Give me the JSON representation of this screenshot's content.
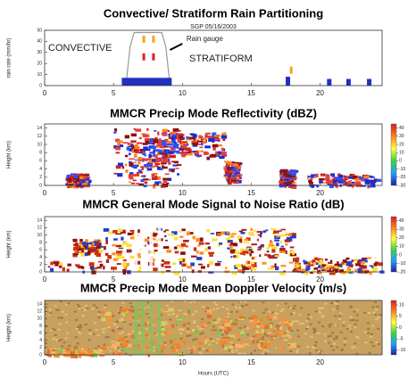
{
  "chart_data": [
    {
      "type": "line",
      "title": "Convective/ Stratiform Rain Partitioning",
      "subtitle": "SGP 05/16/2003",
      "ylabel": "rain rate (mm/hr)",
      "annotations": [
        {
          "text": "CONVECTIVE",
          "color": "#ff8c1a"
        },
        {
          "text": "Rain gauge",
          "color": "#000000"
        },
        {
          "text": "STRATIFORM",
          "color": "#2030c0"
        }
      ],
      "xlim": [
        0,
        24.5
      ],
      "xticks": [
        0,
        5,
        10,
        15,
        20
      ],
      "ylim": [
        0,
        50
      ],
      "yticks": [
        0,
        10,
        20,
        30,
        40,
        50
      ],
      "series": [
        {
          "type": "line",
          "color": "#999999",
          "x": [
            5.9,
            6.2,
            6.5,
            8.5,
            8.8,
            9.1
          ],
          "values": [
            0,
            35,
            48,
            48,
            35,
            0
          ]
        },
        {
          "type": "bar",
          "color": "#2030c0",
          "x": [
            5.6,
            5.9,
            6.2,
            6.5,
            6.8,
            7.1,
            7.4,
            7.7,
            8.0,
            8.3,
            8.6,
            8.9,
            17.5,
            20.5,
            21.9,
            23.4
          ],
          "values": [
            7,
            7,
            7,
            7,
            7,
            7,
            7,
            7,
            7,
            7,
            7,
            7,
            8,
            6,
            6,
            6
          ]
        },
        {
          "type": "marker",
          "color": "#ffa020",
          "x": [
            7.2,
            7.9,
            17.9
          ],
          "values": [
            42,
            42,
            14
          ]
        },
        {
          "type": "marker",
          "color": "#e02020",
          "x": [
            7.2,
            7.9
          ],
          "values": [
            26,
            26
          ]
        }
      ]
    },
    {
      "type": "heatmap",
      "title": "MMCR Precip Mode Reflectivity (dBZ)",
      "ylabel": "Height (km)",
      "xlim": [
        0,
        24.5
      ],
      "xticks": [
        0,
        5,
        10,
        15,
        20
      ],
      "ylim": [
        0,
        15
      ],
      "yticks": [
        0,
        2,
        4,
        6,
        8,
        10,
        12,
        14
      ],
      "clim": [
        -30,
        45
      ],
      "cticks": [
        -30,
        -20,
        -10,
        0,
        10,
        20,
        30,
        40
      ]
    },
    {
      "type": "heatmap",
      "title": "MMCR General Mode Signal to Noise Ratio (dB)",
      "ylabel": "Height (km)",
      "xlim": [
        0,
        24.5
      ],
      "xticks": [
        0,
        5,
        10,
        15,
        20
      ],
      "ylim": [
        0,
        15
      ],
      "yticks": [
        0,
        2,
        4,
        6,
        8,
        10,
        12,
        14
      ],
      "clim": [
        -20,
        45
      ],
      "cticks": [
        -20,
        -10,
        0,
        10,
        20,
        30,
        40
      ]
    },
    {
      "type": "heatmap",
      "title": "MMCR Precip Mode Mean Doppler Velocity (m/s)",
      "ylabel": "Height (km)",
      "xlabel": "Hours (UTC)",
      "xlim": [
        0,
        24.5
      ],
      "xticks": [
        0,
        5,
        10,
        15,
        20
      ],
      "ylim": [
        0,
        15
      ],
      "yticks": [
        0,
        2,
        4,
        6,
        8,
        10,
        12,
        14
      ],
      "clim": [
        -12,
        12
      ],
      "cticks": [
        -10,
        -5,
        0,
        5,
        10
      ]
    }
  ]
}
